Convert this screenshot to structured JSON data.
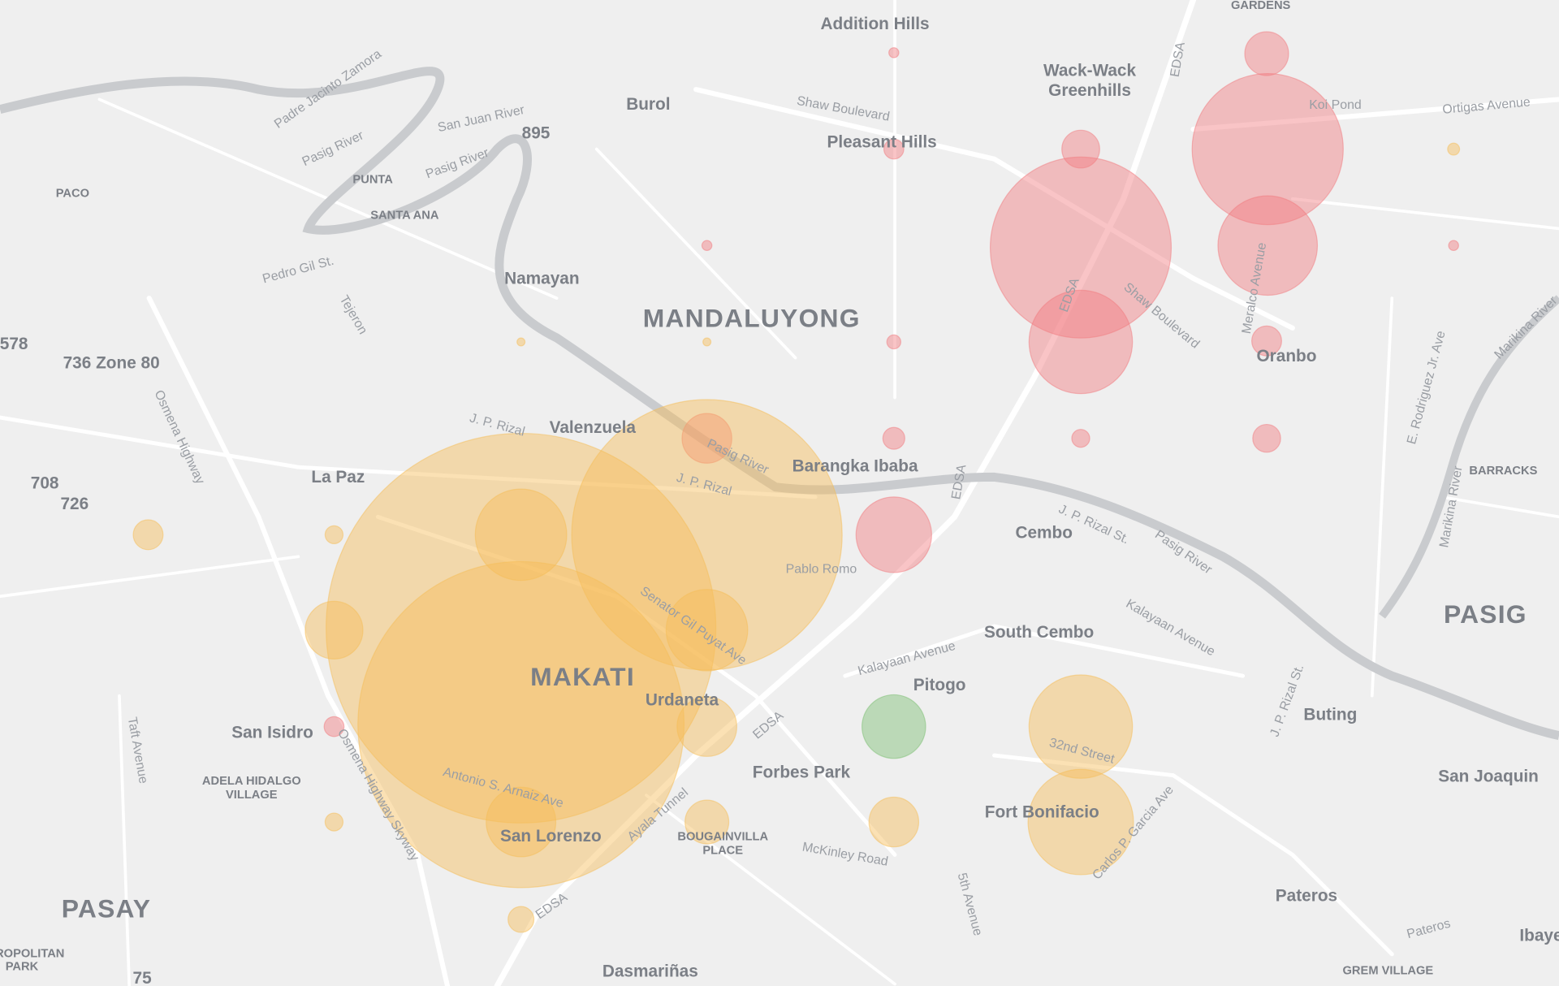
{
  "places": [
    "GARDENS",
    "Addition Hills",
    "Wack-Wack",
    "Greenhills",
    "Burol",
    "Pleasant Hills",
    "PACO",
    "PUNTA",
    "SANTA ANA",
    "Namayan",
    "MANDALUYONG",
    "Oranbo",
    "736 Zone 80",
    "Valenzuela",
    "Barangka Ibaba",
    "La Paz",
    "708",
    "726",
    "BARRACKS",
    "Cembo",
    "PASIG",
    "South Cembo",
    "MAKATI",
    "Pitogo",
    "Urdaneta",
    "Buting",
    "San Isidro",
    "Forbes Park",
    "San Joaquin",
    "ADELA HIDALGO",
    "VILLAGE",
    "Fort Bonifacio",
    "San Lorenzo",
    "BOUGAINVILLA",
    "PLACE",
    "Pateros",
    "PASAY",
    "Dasmariñas",
    "578",
    "75",
    "Ibaye",
    "ROPOLITAN",
    "PARK",
    "GREM VILLAGE",
    "895"
  ],
  "roads": [
    "Shaw Boulevard",
    "Ortigas Avenue",
    "Koi Pond",
    "San Juan River",
    "Pasig River",
    "Pasig River",
    "Padre Jacinto Zamora",
    "EDSA",
    "Pedro Gil St.",
    "Tejeron",
    "Osmena Highway",
    "J. P. Rizal",
    "J. P. Rizal",
    "Pasig River",
    "Pablo Romo",
    "Senator Gil Puyat Ave",
    "EDSA",
    "Shaw Boulevard",
    "Meralco Avenue",
    "EDSA",
    "J. P. Rizal St.",
    "Pasig River",
    "Kalayaan Avenue",
    "Kalayaan Avenue",
    "E. Rodriguez Jr. Ave",
    "Marikina River",
    "Marikina River",
    "32nd Street",
    "Carlos P. Garcia Ave",
    "Antonio S. Arnaiz Ave",
    "Ayala Tunnel",
    "McKinley Road",
    "EDSA",
    "EDSA",
    "5th Avenue",
    "Taft Avenue",
    "Osmena Highway Skyway",
    "J. P. Rizal St.",
    "Pateros"
  ]
}
